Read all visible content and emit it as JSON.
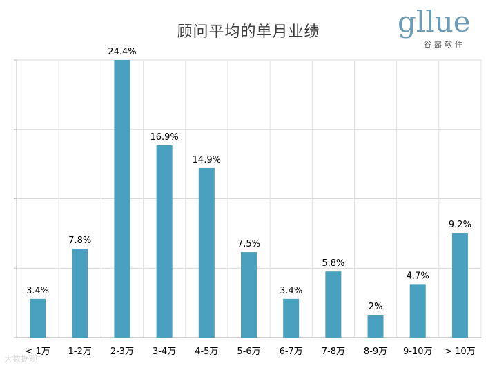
{
  "chart_data": {
    "type": "bar",
    "title": "顾问平均的单月业绩",
    "categories": [
      "< 1万",
      "1-2万",
      "2-3万",
      "3-4万",
      "4-5万",
      "5-6万",
      "6-7万",
      "7-8万",
      "8-9万",
      "9-10万",
      "> 10万"
    ],
    "values": [
      3.4,
      7.8,
      24.4,
      16.9,
      14.9,
      7.5,
      3.4,
      5.8,
      2,
      4.7,
      9.2
    ],
    "data_labels": [
      "3.4%",
      "7.8%",
      "24.4%",
      "16.9%",
      "14.9%",
      "7.5%",
      "3.4%",
      "5.8%",
      "2%",
      "4.7%",
      "9.2%"
    ],
    "ylim": [
      0,
      24.4
    ],
    "grid": true,
    "bar_color": "#4aa0bf"
  },
  "logo": {
    "word": "gllue",
    "sub": "谷露软件"
  },
  "watermark": "大数据观"
}
